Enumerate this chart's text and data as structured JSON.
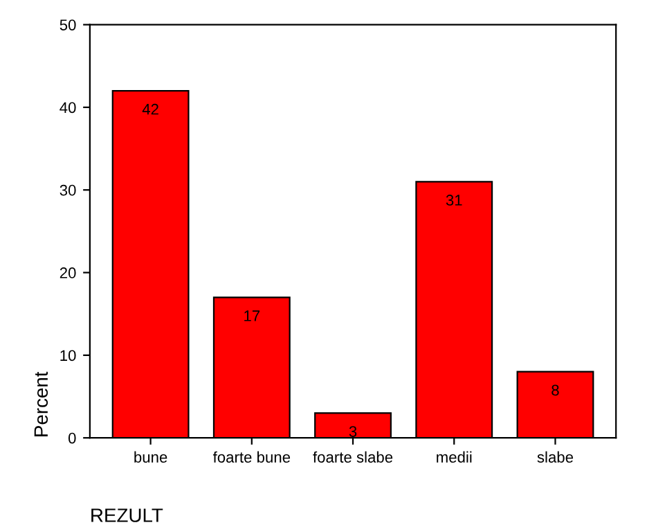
{
  "chart_data": {
    "type": "bar",
    "categories": [
      "bune",
      "foarte bune",
      "foarte slabe",
      "medii",
      "slabe"
    ],
    "values": [
      42,
      17,
      3,
      31,
      8
    ],
    "color": "#ff0000",
    "xlabel": "REZULT",
    "ylabel": "Percent",
    "ylim": [
      0,
      50
    ],
    "yticks": [
      0,
      10,
      20,
      30,
      40,
      50
    ],
    "data_labels": true,
    "grid": false,
    "legend": false
  }
}
